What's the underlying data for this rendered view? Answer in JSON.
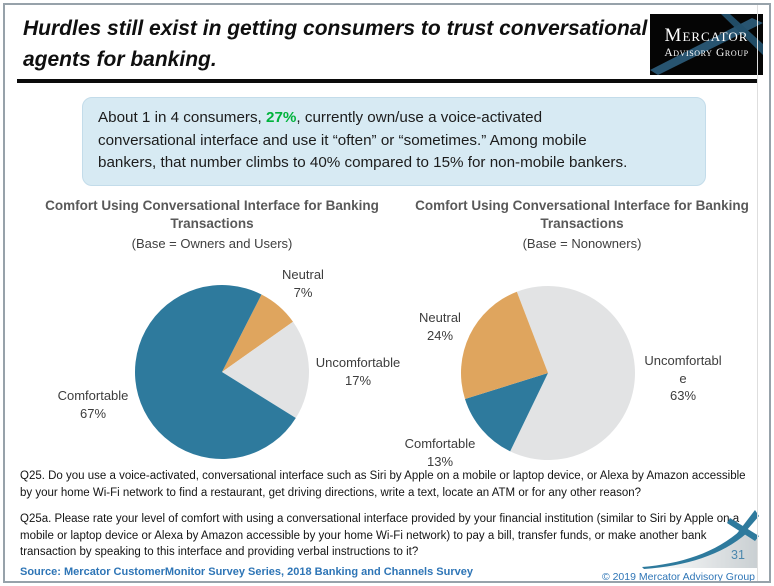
{
  "slide": {
    "title": "Hurdles still exist in getting consumers to trust conversational agents for banking.",
    "page_number": "31",
    "source": "Source: Mercator CustomerMonitor Survey Series, 2018 Banking and Channels Survey",
    "copyright": "© 2019 Mercator Advisory Group"
  },
  "logo": {
    "line1": "Mercator",
    "line2": "Advisory Group"
  },
  "callout": {
    "text_before": "About 1 in 4 consumers, ",
    "highlight": "27%",
    "highlight_color": "#00b33c",
    "text_after": ", currently own/use a voice-activated\nconversational interface and use it “often” or “sometimes.” Among mobile\nbankers, that number climbs to 40% compared to 15% for non-mobile bankers.",
    "background": "#d7eaf3"
  },
  "questions": {
    "q25": "Q25. Do you use a voice-activated, conversational interface such as Siri by Apple on a mobile or laptop device, or Alexa by Amazon accessible by your home Wi-Fi network to find a restaurant, get driving directions, write a text, locate an ATM or for any other reason?",
    "q25a": "Q25a. Please rate your level of comfort with using a conversational interface provided by your financial institution (similar to Siri by Apple on a mobile or laptop device or Alexa by Amazon accessible by your home Wi-Fi network) to pay a bill, transfer funds, or make another bank transaction by speaking to this interface and providing verbal instructions to it?"
  },
  "chart_data": [
    {
      "type": "pie",
      "title": "Comfort Using Conversational Interface for Banking Transactions",
      "subtitle": "(Base = Owners and Users)",
      "legend_position": "outside data labels",
      "start_angle_deg": 27,
      "slices": [
        {
          "label": "Neutral",
          "value": 7,
          "display": "7%",
          "color": "#dfa55e"
        },
        {
          "label": "Uncomfortable",
          "value": 17,
          "display": "17%",
          "color": "#e2e3e4"
        },
        {
          "label": "Comfortable",
          "value": 67,
          "display": "67%",
          "color": "#2e7a9d"
        }
      ]
    },
    {
      "type": "pie",
      "title": "Comfort Using Conversational Interface for Banking Transactions",
      "subtitle": "(Base = Nonowners)",
      "legend_position": "outside data labels",
      "start_angle_deg": 339,
      "slices": [
        {
          "label": "Uncomfortable",
          "value": 63,
          "display": "63%",
          "color": "#e2e3e4"
        },
        {
          "label": "Comfortable",
          "value": 13,
          "display": "13%",
          "color": "#2e7a9d"
        },
        {
          "label": "Neutral",
          "value": 24,
          "display": "24%",
          "color": "#dfa55e"
        }
      ]
    }
  ]
}
